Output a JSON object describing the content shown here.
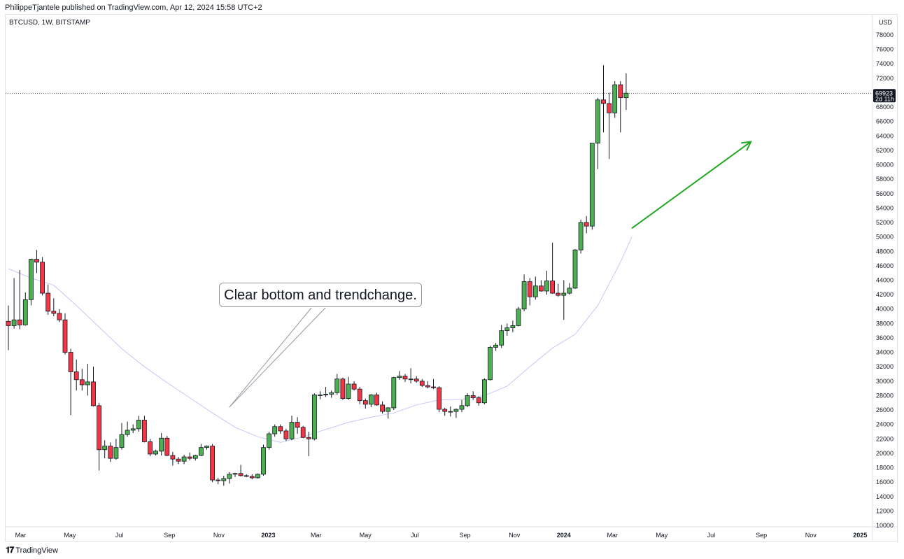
{
  "header": {
    "publish_line": "PhilippeTjantele published on TradingView.com, Apr 12, 2024 15:58 UTC+2"
  },
  "symbol": {
    "label": "BTCUSD, 1W, BITSTAMP"
  },
  "callout": {
    "text": "Clear bottom and trendchange."
  },
  "footer": {
    "brand_name": "TradingView",
    "brand_icon": "tradingview-logo-icon"
  },
  "colors": {
    "up": "#4caf50",
    "down": "#f23645",
    "ma_line": "#c5c8f5",
    "arrow": "#22a822",
    "price_tag_bg": "#131722"
  },
  "chart_data": {
    "type": "candlestick",
    "symbol": "BTCUSD",
    "interval": "1W",
    "exchange": "BITSTAMP",
    "currency_label": "USD",
    "ylim": [
      10000,
      80000
    ],
    "y_ticks": [
      10000,
      12000,
      14000,
      16000,
      18000,
      20000,
      22000,
      24000,
      26000,
      28000,
      30000,
      32000,
      34000,
      36000,
      38000,
      40000,
      42000,
      44000,
      46000,
      48000,
      50000,
      52000,
      54000,
      56000,
      58000,
      60000,
      62000,
      64000,
      66000,
      68000,
      70000,
      72000,
      74000,
      76000,
      78000
    ],
    "x_ticks": [
      {
        "label": "Mar",
        "date": "2022-03-01",
        "bold": false
      },
      {
        "label": "May",
        "date": "2022-05-01",
        "bold": false
      },
      {
        "label": "Jul",
        "date": "2022-07-01",
        "bold": false
      },
      {
        "label": "Sep",
        "date": "2022-09-01",
        "bold": false
      },
      {
        "label": "Nov",
        "date": "2022-11-01",
        "bold": false
      },
      {
        "label": "2023",
        "date": "2023-01-01",
        "bold": true
      },
      {
        "label": "Mar",
        "date": "2023-03-01",
        "bold": false
      },
      {
        "label": "May",
        "date": "2023-05-01",
        "bold": false
      },
      {
        "label": "Jul",
        "date": "2023-07-01",
        "bold": false
      },
      {
        "label": "Sep",
        "date": "2023-09-01",
        "bold": false
      },
      {
        "label": "Nov",
        "date": "2023-11-01",
        "bold": false
      },
      {
        "label": "2024",
        "date": "2024-01-01",
        "bold": true
      },
      {
        "label": "Mar",
        "date": "2024-03-01",
        "bold": false
      },
      {
        "label": "May",
        "date": "2024-05-01",
        "bold": false
      },
      {
        "label": "Jul",
        "date": "2024-07-01",
        "bold": false
      },
      {
        "label": "Sep",
        "date": "2024-09-01",
        "bold": false
      },
      {
        "label": "Nov",
        "date": "2024-11-01",
        "bold": false
      },
      {
        "label": "2025",
        "date": "2025-01-01",
        "bold": true
      }
    ],
    "last_price": {
      "value": 69923,
      "label": "69923",
      "countdown": "2d 11h"
    },
    "candles": [
      {
        "date": "2022-02-14",
        "o": 38300,
        "h": 40500,
        "l": 34300,
        "c": 37700
      },
      {
        "date": "2022-02-21",
        "o": 37700,
        "h": 44300,
        "l": 37300,
        "c": 38500
      },
      {
        "date": "2022-02-28",
        "o": 38500,
        "h": 45400,
        "l": 37200,
        "c": 37800
      },
      {
        "date": "2022-03-07",
        "o": 37800,
        "h": 42300,
        "l": 37700,
        "c": 41300
      },
      {
        "date": "2022-03-14",
        "o": 41300,
        "h": 47000,
        "l": 40500,
        "c": 46900
      },
      {
        "date": "2022-03-21",
        "o": 46900,
        "h": 48200,
        "l": 45000,
        "c": 46500
      },
      {
        "date": "2022-03-28",
        "o": 46500,
        "h": 47200,
        "l": 41900,
        "c": 42200
      },
      {
        "date": "2022-04-04",
        "o": 42200,
        "h": 43400,
        "l": 39200,
        "c": 39700
      },
      {
        "date": "2022-04-11",
        "o": 39700,
        "h": 41500,
        "l": 39000,
        "c": 39400
      },
      {
        "date": "2022-04-18",
        "o": 39400,
        "h": 40000,
        "l": 38200,
        "c": 38500
      },
      {
        "date": "2022-04-25",
        "o": 38500,
        "h": 39400,
        "l": 33700,
        "c": 34000
      },
      {
        "date": "2022-05-02",
        "o": 34000,
        "h": 34500,
        "l": 25300,
        "c": 31300
      },
      {
        "date": "2022-05-09",
        "o": 31300,
        "h": 33000,
        "l": 28700,
        "c": 30200
      },
      {
        "date": "2022-05-16",
        "o": 30200,
        "h": 31700,
        "l": 28700,
        "c": 29500
      },
      {
        "date": "2022-05-23",
        "o": 29500,
        "h": 32400,
        "l": 28000,
        "c": 29900
      },
      {
        "date": "2022-05-30",
        "o": 29900,
        "h": 32000,
        "l": 26500,
        "c": 26600
      },
      {
        "date": "2022-06-06",
        "o": 26600,
        "h": 27000,
        "l": 17600,
        "c": 20500
      },
      {
        "date": "2022-06-13",
        "o": 20500,
        "h": 21800,
        "l": 19300,
        "c": 21000
      },
      {
        "date": "2022-06-20",
        "o": 21000,
        "h": 21500,
        "l": 18800,
        "c": 19300
      },
      {
        "date": "2022-06-27",
        "o": 19300,
        "h": 22000,
        "l": 19100,
        "c": 20800
      },
      {
        "date": "2022-07-04",
        "o": 20800,
        "h": 24200,
        "l": 20500,
        "c": 22600
      },
      {
        "date": "2022-07-11",
        "o": 22600,
        "h": 24400,
        "l": 22300,
        "c": 23200
      },
      {
        "date": "2022-07-18",
        "o": 23200,
        "h": 24000,
        "l": 22800,
        "c": 23400
      },
      {
        "date": "2022-07-25",
        "o": 23400,
        "h": 25200,
        "l": 23000,
        "c": 24600
      },
      {
        "date": "2022-08-01",
        "o": 24600,
        "h": 25200,
        "l": 21500,
        "c": 21600
      },
      {
        "date": "2022-08-08",
        "o": 21600,
        "h": 22000,
        "l": 19600,
        "c": 19900
      },
      {
        "date": "2022-08-15",
        "o": 19900,
        "h": 20500,
        "l": 19700,
        "c": 20300
      },
      {
        "date": "2022-08-22",
        "o": 20300,
        "h": 22800,
        "l": 19700,
        "c": 22100
      },
      {
        "date": "2022-08-29",
        "o": 22100,
        "h": 22400,
        "l": 19600,
        "c": 19700
      },
      {
        "date": "2022-09-05",
        "o": 19700,
        "h": 20200,
        "l": 18300,
        "c": 19200
      },
      {
        "date": "2022-09-12",
        "o": 19200,
        "h": 19500,
        "l": 18500,
        "c": 18900
      },
      {
        "date": "2022-09-19",
        "o": 18900,
        "h": 19800,
        "l": 18500,
        "c": 19500
      },
      {
        "date": "2022-09-26",
        "o": 19500,
        "h": 20100,
        "l": 19000,
        "c": 19300
      },
      {
        "date": "2022-10-03",
        "o": 19300,
        "h": 19800,
        "l": 19000,
        "c": 19700
      },
      {
        "date": "2022-10-10",
        "o": 19700,
        "h": 21300,
        "l": 19600,
        "c": 20800
      },
      {
        "date": "2022-10-17",
        "o": 20800,
        "h": 21100,
        "l": 20500,
        "c": 21000
      },
      {
        "date": "2022-10-24",
        "o": 21000,
        "h": 21300,
        "l": 16000,
        "c": 16300
      },
      {
        "date": "2022-10-31",
        "o": 16300,
        "h": 16600,
        "l": 15700,
        "c": 16200
      },
      {
        "date": "2022-11-07",
        "o": 16200,
        "h": 16900,
        "l": 15500,
        "c": 16500
      },
      {
        "date": "2022-11-14",
        "o": 16500,
        "h": 17400,
        "l": 15800,
        "c": 17100
      },
      {
        "date": "2022-11-21",
        "o": 17100,
        "h": 17300,
        "l": 16700,
        "c": 17200
      },
      {
        "date": "2022-11-28",
        "o": 17200,
        "h": 18400,
        "l": 16800,
        "c": 16900
      },
      {
        "date": "2022-12-05",
        "o": 16900,
        "h": 17100,
        "l": 16700,
        "c": 16800
      },
      {
        "date": "2022-12-12",
        "o": 16800,
        "h": 17100,
        "l": 16400,
        "c": 16600
      },
      {
        "date": "2022-12-19",
        "o": 16600,
        "h": 17200,
        "l": 16500,
        "c": 17100
      },
      {
        "date": "2022-12-26",
        "o": 17100,
        "h": 21200,
        "l": 16900,
        "c": 20800
      },
      {
        "date": "2023-01-02",
        "o": 20800,
        "h": 23000,
        "l": 20500,
        "c": 22700
      },
      {
        "date": "2023-01-09",
        "o": 22700,
        "h": 24000,
        "l": 22300,
        "c": 23700
      },
      {
        "date": "2023-01-16",
        "o": 23700,
        "h": 24000,
        "l": 22700,
        "c": 23100
      },
      {
        "date": "2023-01-23",
        "o": 23100,
        "h": 23400,
        "l": 21700,
        "c": 22000
      },
      {
        "date": "2023-01-30",
        "o": 22000,
        "h": 25200,
        "l": 21800,
        "c": 24300
      },
      {
        "date": "2023-02-06",
        "o": 24300,
        "h": 25000,
        "l": 22700,
        "c": 23600
      },
      {
        "date": "2023-02-13",
        "o": 23600,
        "h": 23800,
        "l": 22100,
        "c": 22200
      },
      {
        "date": "2023-02-20",
        "o": 22200,
        "h": 23000,
        "l": 19600,
        "c": 22000
      },
      {
        "date": "2023-02-27",
        "o": 22000,
        "h": 28300,
        "l": 21800,
        "c": 28100
      },
      {
        "date": "2023-03-06",
        "o": 28100,
        "h": 28600,
        "l": 27500,
        "c": 28100
      },
      {
        "date": "2023-03-13",
        "o": 28100,
        "h": 29200,
        "l": 27800,
        "c": 28200
      },
      {
        "date": "2023-03-20",
        "o": 28200,
        "h": 28700,
        "l": 27700,
        "c": 28400
      },
      {
        "date": "2023-03-27",
        "o": 28400,
        "h": 31000,
        "l": 28100,
        "c": 30300
      },
      {
        "date": "2023-04-03",
        "o": 30300,
        "h": 30500,
        "l": 27400,
        "c": 27600
      },
      {
        "date": "2023-04-10",
        "o": 27600,
        "h": 30600,
        "l": 27400,
        "c": 29600
      },
      {
        "date": "2023-04-17",
        "o": 29600,
        "h": 30000,
        "l": 28700,
        "c": 28900
      },
      {
        "date": "2023-04-24",
        "o": 28900,
        "h": 29200,
        "l": 26800,
        "c": 27300
      },
      {
        "date": "2023-05-01",
        "o": 27300,
        "h": 27600,
        "l": 26200,
        "c": 26800
      },
      {
        "date": "2023-05-08",
        "o": 26800,
        "h": 28200,
        "l": 26400,
        "c": 28100
      },
      {
        "date": "2023-05-15",
        "o": 28100,
        "h": 28400,
        "l": 26600,
        "c": 26700
      },
      {
        "date": "2023-05-22",
        "o": 26700,
        "h": 27200,
        "l": 25500,
        "c": 25800
      },
      {
        "date": "2023-05-29",
        "o": 25800,
        "h": 26400,
        "l": 24800,
        "c": 26300
      },
      {
        "date": "2023-06-05",
        "o": 26300,
        "h": 30600,
        "l": 26000,
        "c": 30500
      },
      {
        "date": "2023-06-12",
        "o": 30500,
        "h": 31400,
        "l": 30200,
        "c": 30700
      },
      {
        "date": "2023-06-19",
        "o": 30700,
        "h": 31000,
        "l": 29900,
        "c": 30300
      },
      {
        "date": "2023-06-26",
        "o": 30300,
        "h": 31800,
        "l": 29700,
        "c": 30300
      },
      {
        "date": "2023-07-03",
        "o": 30300,
        "h": 30700,
        "l": 29800,
        "c": 30000
      },
      {
        "date": "2023-07-10",
        "o": 30000,
        "h": 30300,
        "l": 29200,
        "c": 29400
      },
      {
        "date": "2023-07-17",
        "o": 29400,
        "h": 30000,
        "l": 29000,
        "c": 29200
      },
      {
        "date": "2023-07-24",
        "o": 29200,
        "h": 30300,
        "l": 28900,
        "c": 29100
      },
      {
        "date": "2023-07-31",
        "o": 29100,
        "h": 29300,
        "l": 25700,
        "c": 26100
      },
      {
        "date": "2023-08-07",
        "o": 26100,
        "h": 26300,
        "l": 25200,
        "c": 25800
      },
      {
        "date": "2023-08-14",
        "o": 25800,
        "h": 26500,
        "l": 25100,
        "c": 25800
      },
      {
        "date": "2023-08-21",
        "o": 25800,
        "h": 26200,
        "l": 24900,
        "c": 26100
      },
      {
        "date": "2023-08-28",
        "o": 26100,
        "h": 27400,
        "l": 25700,
        "c": 26600
      },
      {
        "date": "2023-09-04",
        "o": 26600,
        "h": 28300,
        "l": 26400,
        "c": 28000
      },
      {
        "date": "2023-09-11",
        "o": 28000,
        "h": 28600,
        "l": 27400,
        "c": 27700
      },
      {
        "date": "2023-09-18",
        "o": 27700,
        "h": 27900,
        "l": 26600,
        "c": 27000
      },
      {
        "date": "2023-09-25",
        "o": 27000,
        "h": 30400,
        "l": 26800,
        "c": 30200
      },
      {
        "date": "2023-10-02",
        "o": 30200,
        "h": 34900,
        "l": 30100,
        "c": 34700
      },
      {
        "date": "2023-10-09",
        "o": 34700,
        "h": 35300,
        "l": 34200,
        "c": 35000
      },
      {
        "date": "2023-10-16",
        "o": 35000,
        "h": 37800,
        "l": 34600,
        "c": 37000
      },
      {
        "date": "2023-10-23",
        "o": 37000,
        "h": 38000,
        "l": 36300,
        "c": 37400
      },
      {
        "date": "2023-10-30",
        "o": 37400,
        "h": 38400,
        "l": 36800,
        "c": 37700
      },
      {
        "date": "2023-11-06",
        "o": 37700,
        "h": 40300,
        "l": 37600,
        "c": 40000
      },
      {
        "date": "2023-11-13",
        "o": 40000,
        "h": 44800,
        "l": 39700,
        "c": 43800
      },
      {
        "date": "2023-11-20",
        "o": 43800,
        "h": 44300,
        "l": 40500,
        "c": 41700
      },
      {
        "date": "2023-11-27",
        "o": 41700,
        "h": 44500,
        "l": 41300,
        "c": 43200
      },
      {
        "date": "2023-12-04",
        "o": 43200,
        "h": 44000,
        "l": 42400,
        "c": 42500
      },
      {
        "date": "2023-12-11",
        "o": 42500,
        "h": 45300,
        "l": 42000,
        "c": 43900
      },
      {
        "date": "2023-12-18",
        "o": 43900,
        "h": 49200,
        "l": 42100,
        "c": 42200
      },
      {
        "date": "2023-12-25",
        "o": 42200,
        "h": 43500,
        "l": 41700,
        "c": 41900
      },
      {
        "date": "2024-01-01",
        "o": 41900,
        "h": 44000,
        "l": 38500,
        "c": 42200
      },
      {
        "date": "2024-01-08",
        "o": 42200,
        "h": 43600,
        "l": 42000,
        "c": 42900
      },
      {
        "date": "2024-01-15",
        "o": 42900,
        "h": 48300,
        "l": 42800,
        "c": 48200
      },
      {
        "date": "2024-01-22",
        "o": 48200,
        "h": 52400,
        "l": 47700,
        "c": 52000
      },
      {
        "date": "2024-01-29",
        "o": 52000,
        "h": 52900,
        "l": 50500,
        "c": 51500
      },
      {
        "date": "2024-02-05",
        "o": 51500,
        "h": 63000,
        "l": 51000,
        "c": 63000
      },
      {
        "date": "2024-02-12",
        "o": 63000,
        "h": 69300,
        "l": 59400,
        "c": 69000
      },
      {
        "date": "2024-02-19",
        "o": 69000,
        "h": 73800,
        "l": 64500,
        "c": 68500
      },
      {
        "date": "2024-02-26",
        "o": 68500,
        "h": 70000,
        "l": 60800,
        "c": 67200
      },
      {
        "date": "2024-03-04",
        "o": 67200,
        "h": 71600,
        "l": 66500,
        "c": 71100
      },
      {
        "date": "2024-03-11",
        "o": 71100,
        "h": 71600,
        "l": 64500,
        "c": 69300
      },
      {
        "date": "2024-03-18",
        "o": 69300,
        "h": 72700,
        "l": 67600,
        "c": 69923
      }
    ],
    "moving_average": [
      {
        "date": "2022-02-14",
        "v": 45600
      },
      {
        "date": "2022-03-14",
        "v": 44300
      },
      {
        "date": "2022-04-11",
        "v": 43300
      },
      {
        "date": "2022-05-09",
        "v": 40500
      },
      {
        "date": "2022-06-06",
        "v": 37500
      },
      {
        "date": "2022-07-04",
        "v": 34500
      },
      {
        "date": "2022-08-01",
        "v": 32000
      },
      {
        "date": "2022-08-29",
        "v": 29800
      },
      {
        "date": "2022-09-26",
        "v": 27700
      },
      {
        "date": "2022-10-24",
        "v": 25600
      },
      {
        "date": "2022-11-21",
        "v": 23600
      },
      {
        "date": "2022-12-19",
        "v": 22300
      },
      {
        "date": "2023-01-16",
        "v": 21500
      },
      {
        "date": "2023-02-13",
        "v": 22300
      },
      {
        "date": "2023-03-13",
        "v": 23300
      },
      {
        "date": "2023-04-10",
        "v": 24300
      },
      {
        "date": "2023-05-08",
        "v": 25000
      },
      {
        "date": "2023-06-05",
        "v": 25600
      },
      {
        "date": "2023-07-03",
        "v": 26700
      },
      {
        "date": "2023-07-31",
        "v": 27400
      },
      {
        "date": "2023-08-28",
        "v": 27500
      },
      {
        "date": "2023-09-25",
        "v": 28000
      },
      {
        "date": "2023-10-23",
        "v": 29300
      },
      {
        "date": "2023-11-20",
        "v": 32000
      },
      {
        "date": "2023-12-18",
        "v": 34600
      },
      {
        "date": "2024-01-15",
        "v": 36500
      },
      {
        "date": "2024-02-12",
        "v": 40500
      },
      {
        "date": "2024-03-11",
        "v": 46500
      },
      {
        "date": "2024-03-25",
        "v": 50000
      }
    ],
    "trend_arrow": {
      "from": {
        "date": "2024-03-25",
        "v": 51200
      },
      "to": {
        "date": "2024-08-19",
        "v": 63200
      }
    },
    "callout_leader": {
      "to": {
        "date": "2022-11-14",
        "v": 26400
      }
    }
  }
}
